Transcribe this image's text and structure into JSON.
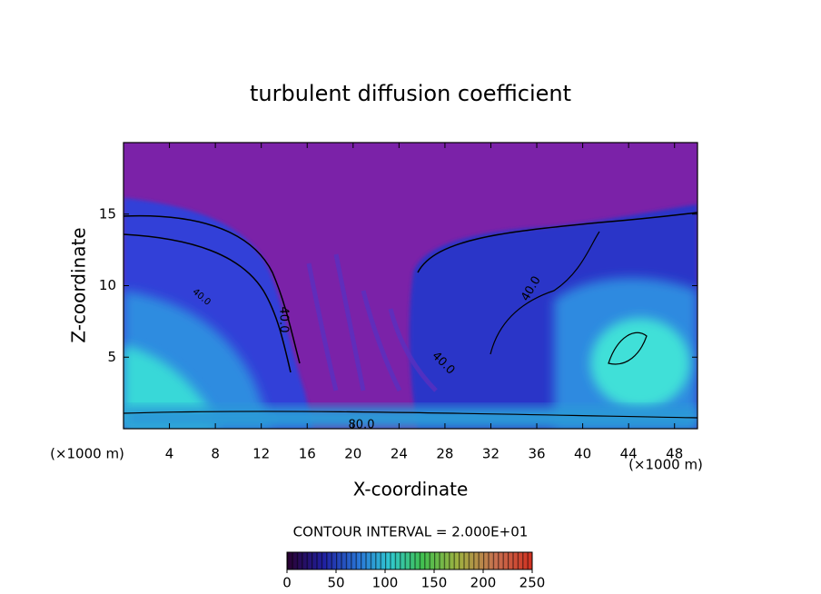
{
  "chart_data": {
    "type": "contour",
    "title": "turbulent diffusion coefficient",
    "x_label": "X-coordinate",
    "y_label": "Z-coordinate",
    "x_unit_label": "(×1000 m)",
    "xlim": [
      0,
      50
    ],
    "xticks": [
      4,
      8,
      12,
      16,
      20,
      24,
      28,
      32,
      36,
      40,
      44,
      48
    ],
    "ylim": [
      0,
      20
    ],
    "yticks": [
      5,
      10,
      15
    ],
    "contour_labels": [
      "40.0",
      "40.0",
      "40.0",
      "40.0",
      "80.0"
    ],
    "contour_interval_label": "CONTOUR INTERVAL = 2.000E+01",
    "colorbar": {
      "lim": [
        0,
        250
      ],
      "ticks": [
        0,
        50,
        100,
        150,
        200,
        250
      ]
    }
  }
}
